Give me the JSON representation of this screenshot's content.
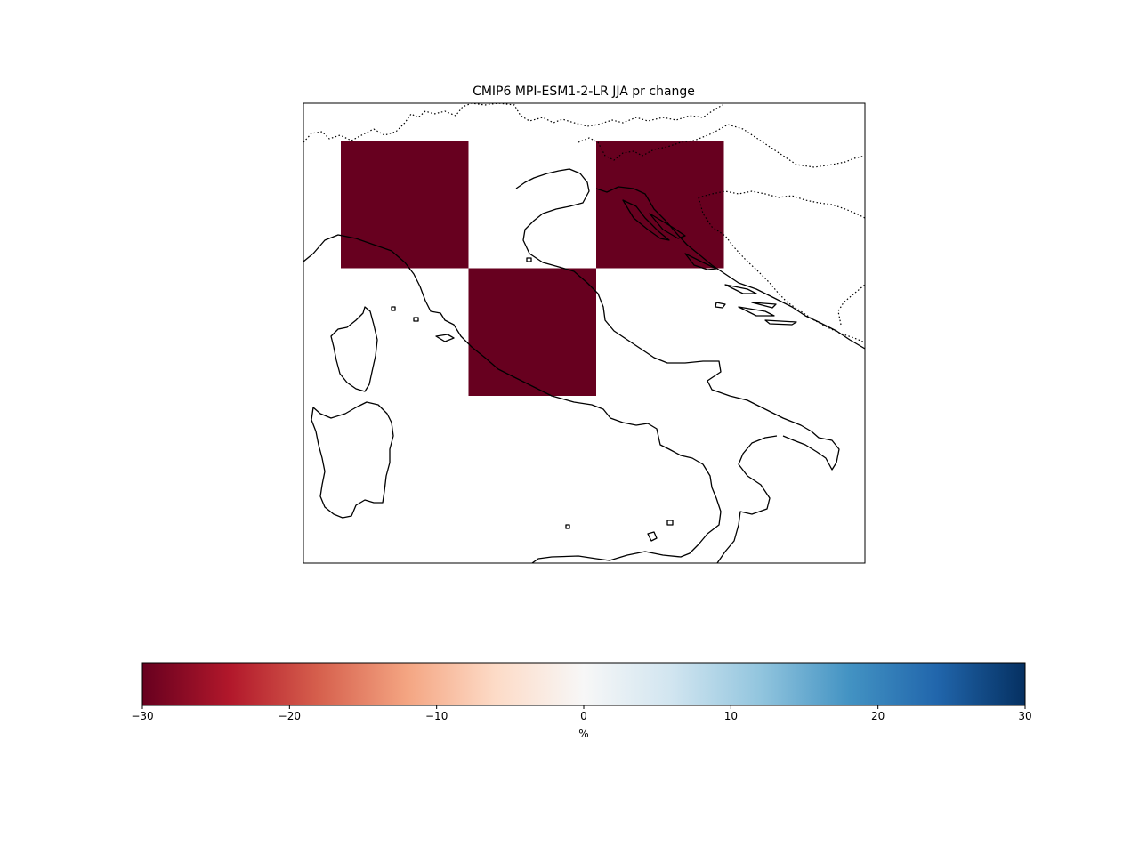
{
  "title": "CMIP6 MPI-ESM1-2-LR JJA pr change",
  "colorbar": {
    "label": "%",
    "vmin": -30,
    "vmax": 30,
    "ticks": [
      "−30",
      "−20",
      "−10",
      "0",
      "10",
      "20",
      "30"
    ],
    "orientation": "horizontal",
    "colormap": "RdBu",
    "stops": [
      "#67001f",
      "#b2182b",
      "#d6604d",
      "#f4a582",
      "#fddbc7",
      "#f7f7f7",
      "#d1e5f0",
      "#92c5de",
      "#4393c3",
      "#2166ac",
      "#053061"
    ]
  },
  "map": {
    "region": "Italy and the central Mediterranean",
    "features": [
      "coastlines",
      "country borders (dotted)"
    ],
    "coastline_color": "#000000"
  },
  "chart_data": {
    "type": "heatmap",
    "title": "CMIP6 MPI-ESM1-2-LR JJA pr change",
    "grid_cells": [
      {
        "row": 0,
        "col": 0,
        "value": -30,
        "color": "#67001f"
      },
      {
        "row": 0,
        "col": 2,
        "value": -30,
        "color": "#67001f"
      },
      {
        "row": 1,
        "col": 1,
        "value": -30,
        "color": "#67001f"
      }
    ],
    "colorbar_range": [
      -30,
      30
    ],
    "colorbar_label": "%"
  }
}
